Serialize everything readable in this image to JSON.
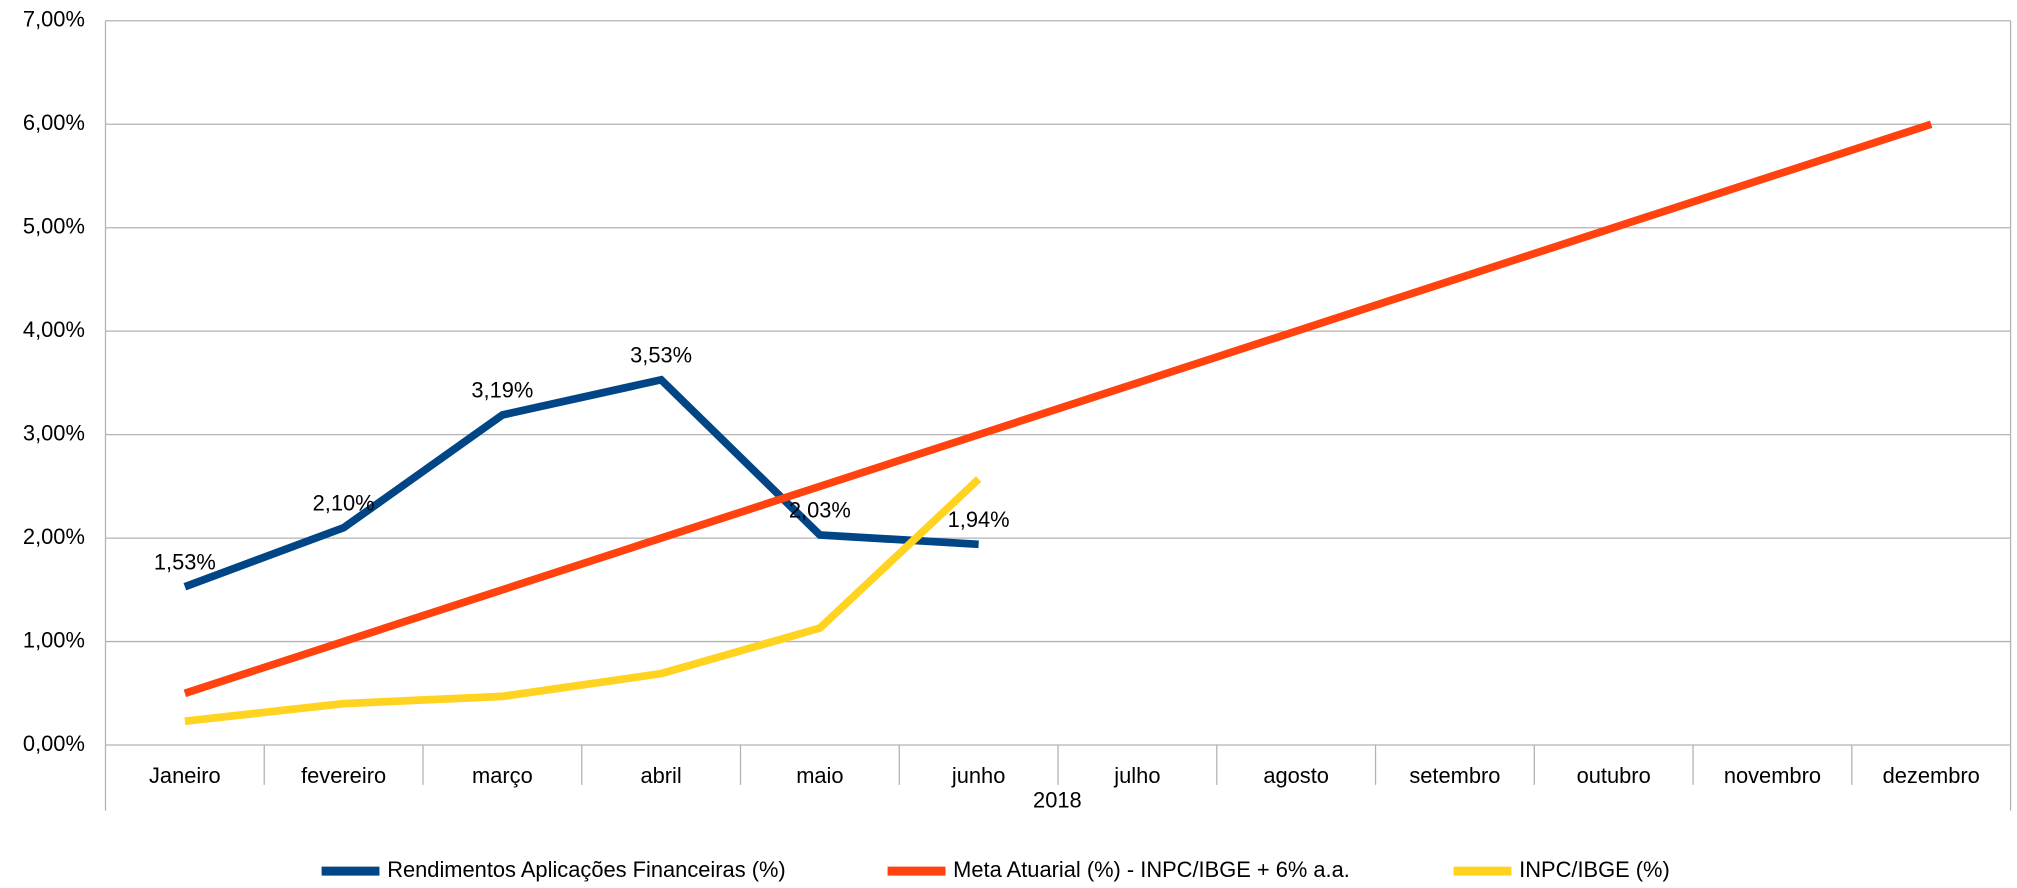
{
  "chart_data": {
    "type": "line",
    "x_label": "2018",
    "categories": [
      "Janeiro",
      "fevereiro",
      "março",
      "abril",
      "maio",
      "junho",
      "julho",
      "agosto",
      "setembro",
      "outubro",
      "novembro",
      "dezembro"
    ],
    "series": [
      {
        "name": "Rendimentos Aplicações Financeiras (%)",
        "color": "#004586",
        "values": [
          1.53,
          2.1,
          3.19,
          3.53,
          2.03,
          1.94,
          null,
          null,
          null,
          null,
          null,
          null
        ],
        "value_labels": [
          "1,53%",
          "2,10%",
          "3,19%",
          "3,53%",
          "2,03%",
          "1,94%",
          null,
          null,
          null,
          null,
          null,
          null
        ]
      },
      {
        "name": "Meta Atuarial (%) - INPC/IBGE + 6% a.a.",
        "color": "#ff420e",
        "values": [
          0.5,
          1.0,
          1.5,
          2.0,
          2.5,
          3.0,
          3.5,
          4.0,
          4.5,
          5.0,
          5.5,
          6.0
        ]
      },
      {
        "name": "INPC/IBGE (%)",
        "color": "#ffd320",
        "values": [
          0.23,
          0.4,
          0.47,
          0.69,
          1.13,
          2.57,
          null,
          null,
          null,
          null,
          null,
          null
        ]
      }
    ],
    "ylim": [
      0,
      7
    ],
    "yticks": [
      {
        "value": 0,
        "label": "0,00%"
      },
      {
        "value": 1,
        "label": "1,00%"
      },
      {
        "value": 2,
        "label": "2,00%"
      },
      {
        "value": 3,
        "label": "3,00%"
      },
      {
        "value": 4,
        "label": "4,00%"
      },
      {
        "value": 5,
        "label": "5,00%"
      },
      {
        "value": 6,
        "label": "6,00%"
      },
      {
        "value": 7,
        "label": "7,00%"
      }
    ],
    "grid": true,
    "legend": "bottom"
  }
}
